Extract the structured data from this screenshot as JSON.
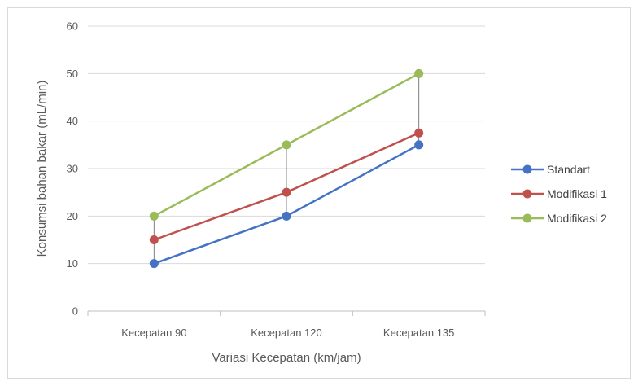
{
  "chart_data": {
    "type": "line",
    "categories": [
      "Kecepatan 90",
      "Kecepatan 120",
      "Kecepatan 135"
    ],
    "series": [
      {
        "name": "Standart",
        "values": [
          10,
          20,
          35
        ],
        "color": "#4472c4"
      },
      {
        "name": "Modifikasi 1",
        "values": [
          15,
          25,
          37.5
        ],
        "color": "#c0504d"
      },
      {
        "name": "Modifikasi 2",
        "values": [
          20,
          35,
          50
        ],
        "color": "#9bbb59"
      }
    ],
    "title": "",
    "xlabel": "Variasi Kecepatan (km/jam)",
    "ylabel": "Konsumsi bahan bakar (mL/min)",
    "ylim": [
      0,
      60
    ],
    "yticks": [
      0,
      10,
      20,
      30,
      40,
      50,
      60
    ],
    "grid": true,
    "high_low_lines": true,
    "legend": "right"
  }
}
